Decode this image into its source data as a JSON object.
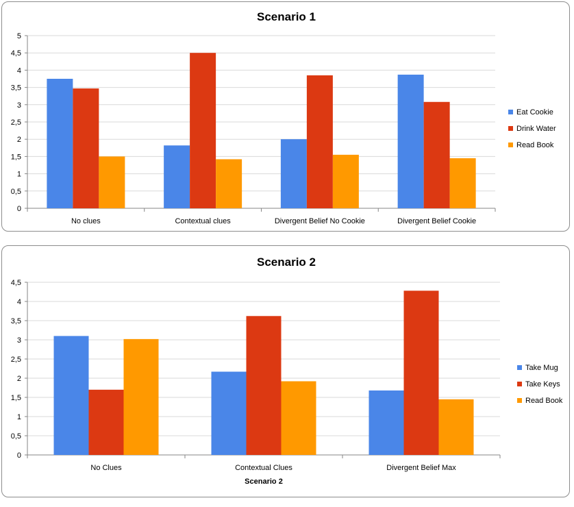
{
  "chart_data": [
    {
      "type": "bar",
      "title": "Scenario  1",
      "xlabel": "",
      "ylabel": "",
      "ylim": [
        0,
        5
      ],
      "yticks": [
        "0",
        "0,5",
        "1",
        "1,5",
        "2",
        "2,5",
        "3",
        "3,5",
        "4",
        "4,5",
        "5"
      ],
      "categories": [
        "No clues",
        "Contextual clues",
        "Divergent Belief No Cookie",
        "Divergent Belief Cookie"
      ],
      "series": [
        {
          "name": "Eat Cookie",
          "color": "#4a86e8",
          "values": [
            3.75,
            1.82,
            2.0,
            3.87
          ]
        },
        {
          "name": "Drink Water",
          "color": "#dc3912",
          "values": [
            3.47,
            4.5,
            3.85,
            3.08
          ]
        },
        {
          "name": "Read Book",
          "color": "#ff9900",
          "values": [
            1.5,
            1.42,
            1.55,
            1.45
          ]
        }
      ],
      "grid": true,
      "legend": "right"
    },
    {
      "type": "bar",
      "title": "Scenario  2",
      "xlabel": "Scenario  2",
      "ylabel": "",
      "ylim": [
        0,
        4.5
      ],
      "yticks": [
        "0",
        "0,5",
        "1",
        "1,5",
        "2",
        "2,5",
        "3",
        "3,5",
        "4",
        "4,5"
      ],
      "categories": [
        "No Clues",
        "Contextual Clues",
        "Divergent Belief Max"
      ],
      "series": [
        {
          "name": "Take Mug",
          "color": "#4a86e8",
          "values": [
            3.1,
            2.17,
            1.68
          ]
        },
        {
          "name": "Take Keys",
          "color": "#dc3912",
          "values": [
            1.7,
            3.62,
            4.28
          ]
        },
        {
          "name": "Read Book",
          "color": "#ff9900",
          "values": [
            3.02,
            1.92,
            1.45
          ]
        }
      ],
      "grid": true,
      "legend": "right"
    }
  ]
}
